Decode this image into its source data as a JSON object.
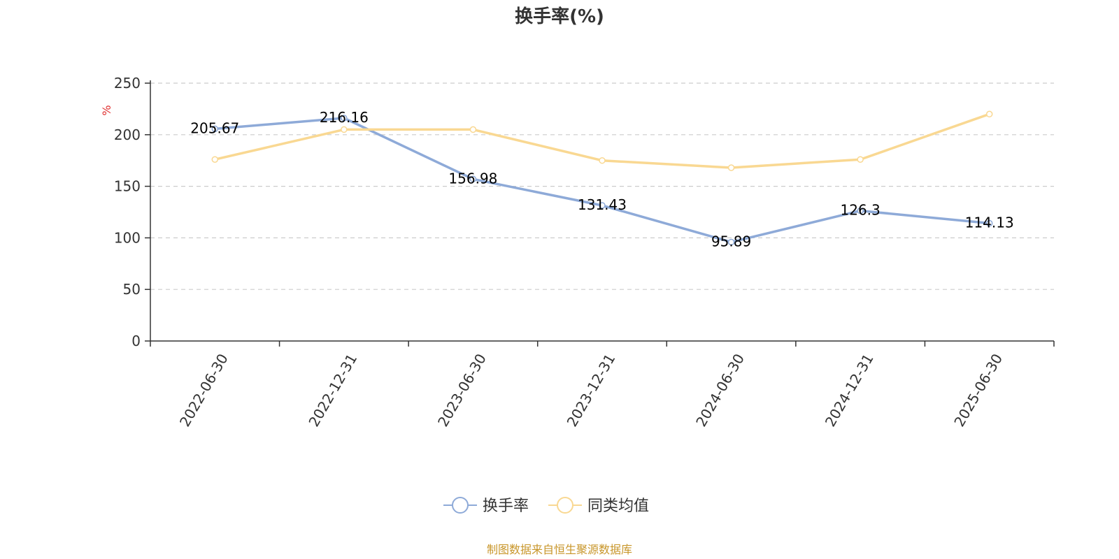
{
  "chart_data": {
    "type": "line",
    "title": "换手率(%)",
    "ylabel": "%",
    "categories": [
      "2022-06-30",
      "2022-12-31",
      "2023-06-30",
      "2023-12-31",
      "2024-06-30",
      "2024-12-31",
      "2025-06-30"
    ],
    "ylim": [
      0,
      250
    ],
    "yticks": [
      0,
      50,
      100,
      150,
      200,
      250
    ],
    "grid": true,
    "legend_position": "bottom",
    "series": [
      {
        "name": "换手率",
        "color": "#8eaad8",
        "values": [
          205.67,
          216.16,
          156.98,
          131.43,
          95.89,
          126.3,
          114.13
        ],
        "labels": [
          "205.67",
          "216.16",
          "156.98",
          "131.43",
          "95.89",
          "126.3",
          "114.13"
        ]
      },
      {
        "name": "同类均值",
        "color": "#f9d892",
        "values": [
          176,
          205,
          205,
          175,
          168,
          176,
          220
        ]
      }
    ]
  },
  "source_text": "制图数据来自恒生聚源数据库",
  "colors": {
    "axis": "#333333",
    "grid": "#cccccc",
    "ylabel": "#e03030",
    "source": "#c8962a"
  }
}
